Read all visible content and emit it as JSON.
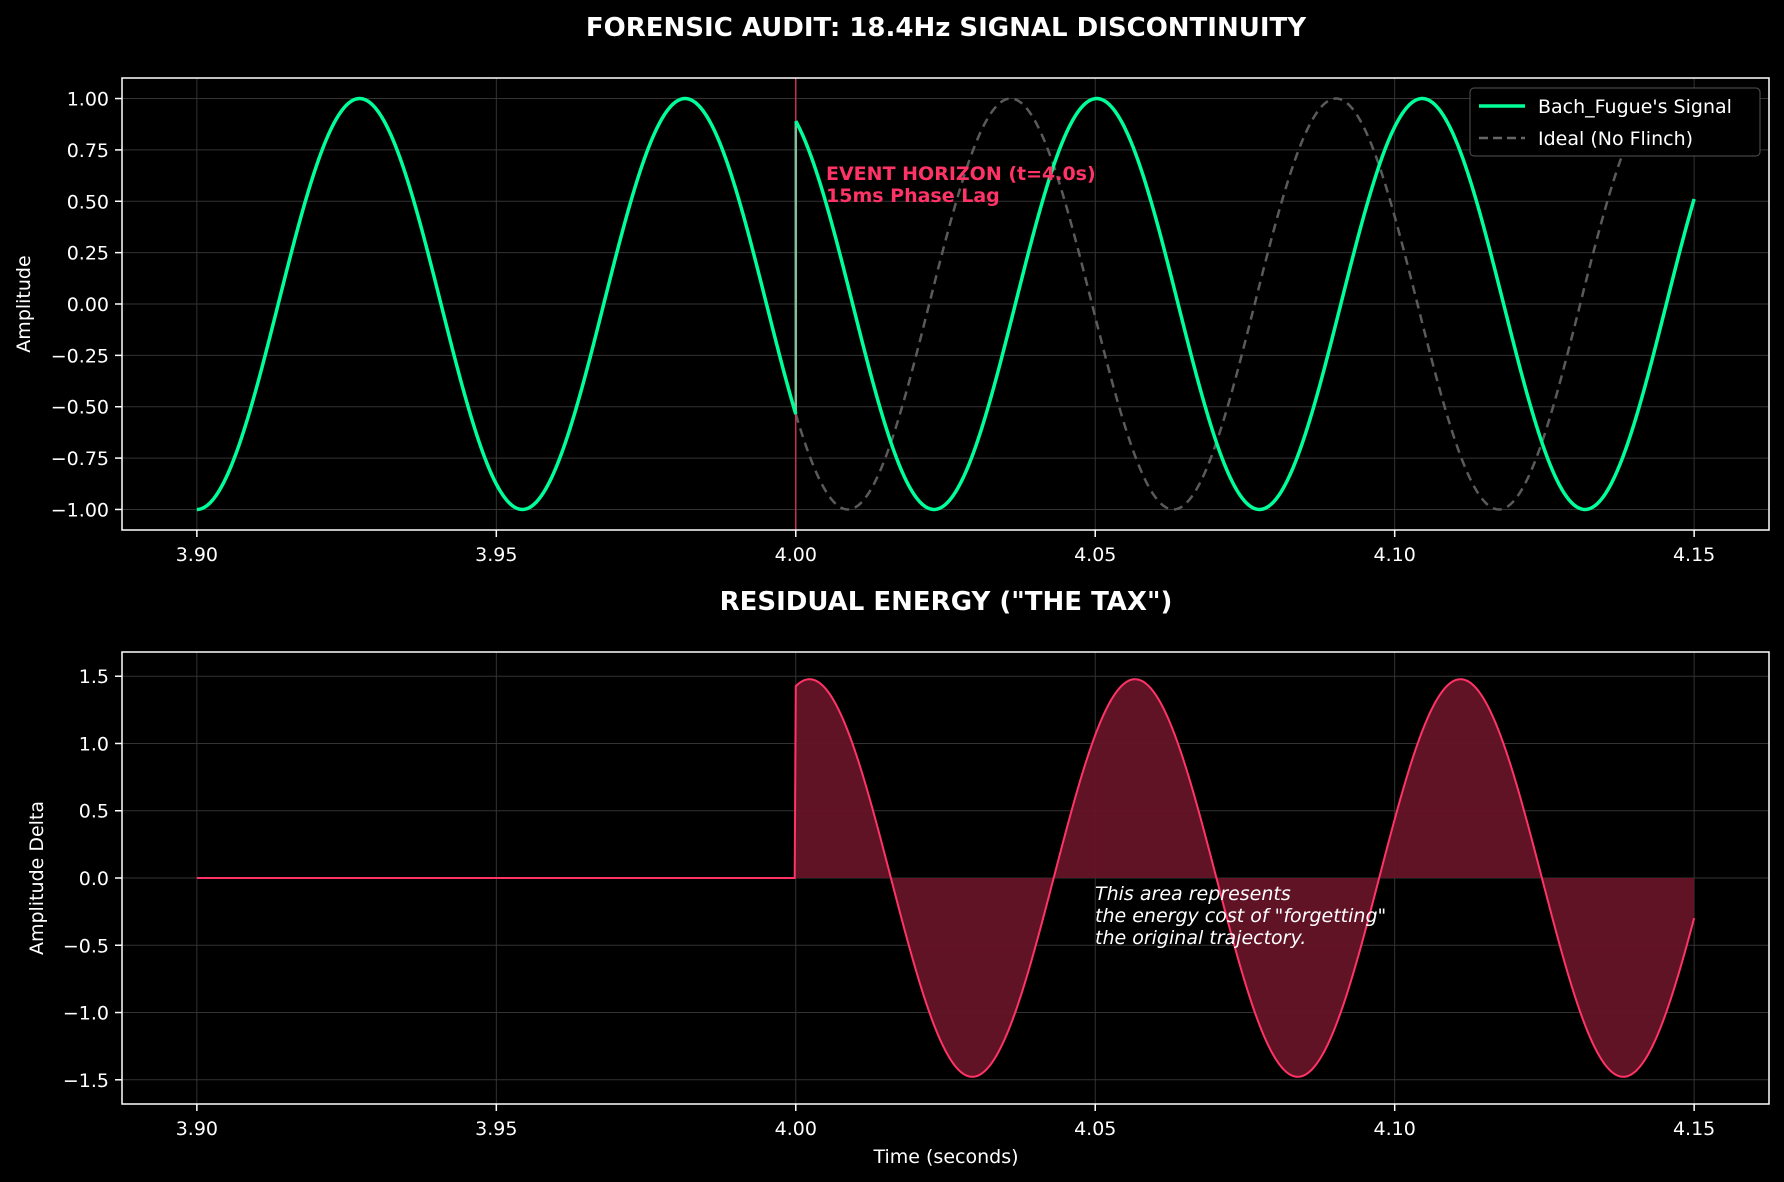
{
  "figure": {
    "title": "FORENSIC AUDIT: 18.4Hz SIGNAL DISCONTINUITY"
  },
  "colors": {
    "background": "#000000",
    "signal": "#00ff99",
    "ideal": "#555555",
    "event": "#ff3366",
    "residual_fill": "#661428",
    "grid": "#333333",
    "axes": "#ffffff"
  },
  "chart_data": [
    {
      "type": "line",
      "title": "FORENSIC AUDIT: 18.4Hz SIGNAL DISCONTINUITY",
      "xlabel": "",
      "ylabel": "Amplitude",
      "xlim": [
        3.8875,
        4.1625
      ],
      "ylim": [
        -1.1,
        1.1
      ],
      "xticks": [
        "3.90",
        "3.95",
        "4.00",
        "4.05",
        "4.10",
        "4.15"
      ],
      "xtick_values": [
        3.9,
        3.95,
        4.0,
        4.05,
        4.1,
        4.15
      ],
      "yticks": [
        "1.00",
        "0.75",
        "0.50",
        "0.25",
        "0.00",
        "−0.25",
        "−0.50",
        "−0.75",
        "−1.00"
      ],
      "ytick_values": [
        1.0,
        0.75,
        0.5,
        0.25,
        0.0,
        -0.25,
        -0.5,
        -0.75,
        -1.0
      ],
      "grid": true,
      "legend_position": "top-right",
      "series": [
        {
          "name": "Bach_Fugue's Signal",
          "style": "solid",
          "color": "#00ff99",
          "frequency_hz": 18.4,
          "x_start": 3.9,
          "x_end": 4.15,
          "pre_event_y_at_start": -1.0,
          "post_event_y_at_event": 0.89,
          "phase_shift_ms": 15
        },
        {
          "name": "Ideal (No Flinch)",
          "style": "dashed",
          "color": "#555555",
          "frequency_hz": 18.4,
          "x_start": 4.0,
          "x_end": 4.15
        }
      ],
      "annotations": [
        {
          "text": "EVENT HORIZON (t=4.0s)",
          "x": 4.005,
          "y": 0.64
        },
        {
          "text": "15ms Phase Lag",
          "x": 4.005,
          "y": 0.52
        }
      ],
      "event_line_x": 4.0
    },
    {
      "type": "area",
      "title": "RESIDUAL ENERGY (\"THE TAX\")",
      "xlabel": "Time (seconds)",
      "ylabel": "Amplitude Delta",
      "xlim": [
        3.8875,
        4.1625
      ],
      "ylim": [
        -1.68,
        1.68
      ],
      "xticks": [
        "3.90",
        "3.95",
        "4.00",
        "4.05",
        "4.10",
        "4.15"
      ],
      "xtick_values": [
        3.9,
        3.95,
        4.0,
        4.05,
        4.1,
        4.15
      ],
      "yticks": [
        "1.5",
        "1.0",
        "0.5",
        "0.0",
        "−0.5",
        "−1.0",
        "−1.5"
      ],
      "ytick_values": [
        1.5,
        1.0,
        0.5,
        0.0,
        -0.5,
        -1.0,
        -1.5
      ],
      "grid": true,
      "series": [
        {
          "name": "",
          "color": "#ff3366",
          "fill": "#661428",
          "peak": 1.52,
          "frequency_hz": 18.4,
          "x_start": 3.9,
          "x_end": 4.15
        }
      ],
      "annotations": [
        {
          "text": "This area represents",
          "x": 4.05,
          "y": -0.11
        },
        {
          "text": "the energy cost of \"forgetting\"",
          "x": 4.05,
          "y": -0.27
        },
        {
          "text": "the original trajectory.",
          "x": 4.05,
          "y": -0.43
        }
      ]
    }
  ]
}
